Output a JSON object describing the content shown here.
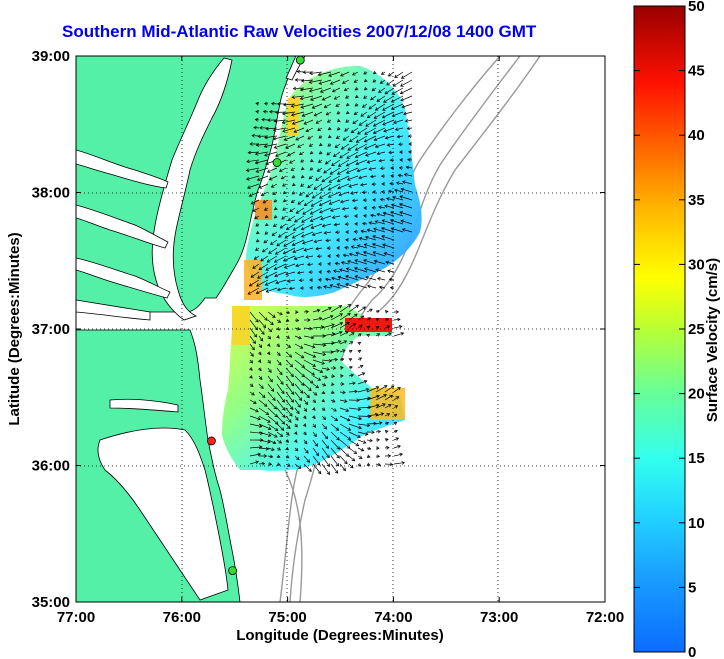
{
  "title": "Southern Mid-Atlantic Raw Velocities 2007/12/08 1400 GMT",
  "xaxis": {
    "label": "Longitude (Degrees:Minutes)",
    "ticks": [
      "77:00",
      "76:00",
      "75:00",
      "74:00",
      "73:00",
      "72:00"
    ]
  },
  "yaxis": {
    "label": "Latitude (Degrees:Minutes)",
    "ticks": [
      "39:00",
      "38:00",
      "37:00",
      "36:00",
      "35:00"
    ]
  },
  "colorbar": {
    "label": "Surface Velocity (cm/s)",
    "ticks": [
      "50",
      "45",
      "40",
      "35",
      "30",
      "25",
      "20",
      "15",
      "10",
      "5",
      "0"
    ],
    "min": 0,
    "max": 50
  },
  "colors": {
    "land": "#55f0a8",
    "water": "#ffffff",
    "title": "#0000ee",
    "station_active": "#33dd33",
    "station_alert": "#ff2222"
  },
  "stations": [
    {
      "lon": -74.88,
      "lat": 38.97,
      "status": "active"
    },
    {
      "lon": -75.1,
      "lat": 38.22,
      "status": "active"
    },
    {
      "lon": -75.72,
      "lat": 36.18,
      "status": "alert"
    },
    {
      "lon": -75.52,
      "lat": 35.23,
      "status": "active"
    }
  ]
}
